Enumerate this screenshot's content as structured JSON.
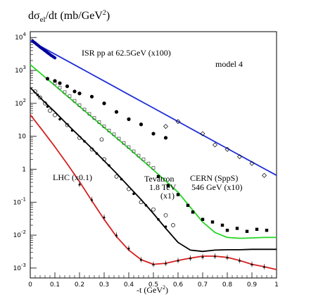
{
  "chart_data": {
    "type": "scatter",
    "title_main": "dσ",
    "title_sub": "el",
    "title_rest": "/dt  (mb/GeV",
    "title_sup": "2",
    "title_end": ")",
    "xlabel_main": "-t  (GeV",
    "xlabel_sup": "2",
    "xlabel_end": ")",
    "xlim": [
      0,
      1
    ],
    "ylim": [
      0.0005,
      15000
    ],
    "y_scale": "log",
    "x_ticks": [
      {
        "v": 0,
        "label": "0"
      },
      {
        "v": 0.1,
        "label": "0.1"
      },
      {
        "v": 0.2,
        "label": "0.2"
      },
      {
        "v": 0.3,
        "label": "0.3"
      },
      {
        "v": 0.4,
        "label": "0.4"
      },
      {
        "v": 0.5,
        "label": "0.5"
      },
      {
        "v": 0.6,
        "label": "0.6"
      },
      {
        "v": 0.7,
        "label": "0.7"
      },
      {
        "v": 0.8,
        "label": "0.8"
      },
      {
        "v": 0.9,
        "label": "0.9"
      },
      {
        "v": 1.0,
        "label": "1"
      }
    ],
    "y_ticks": [
      {
        "v": 0.001,
        "base": "10",
        "exp": "-3"
      },
      {
        "v": 0.01,
        "base": "10",
        "exp": "-2"
      },
      {
        "v": 0.1,
        "base": "10",
        "exp": "-1"
      },
      {
        "v": 1,
        "base": "1",
        "exp": ""
      },
      {
        "v": 10,
        "base": "10",
        "exp": ""
      },
      {
        "v": 100,
        "base": "10",
        "exp": "2"
      },
      {
        "v": 1000,
        "base": "10",
        "exp": "3"
      },
      {
        "v": 10000,
        "base": "10",
        "exp": "4"
      }
    ],
    "annotations": {
      "model": "model 4",
      "isr": "ISR pp at 62.5GeV   (x100)",
      "cern_1": "CERN (SppS)",
      "cern_2": "546 GeV  (x10)",
      "tev_1": "Tevatron",
      "tev_2": "1.8 TeV",
      "tev_3": "(x1)",
      "lhc": "LHC (x0.1)"
    },
    "curves": [
      {
        "key": "isr",
        "color": "#1f2fd6",
        "points": [
          [
            0,
            8000
          ],
          [
            0.1,
            3120
          ],
          [
            0.2,
            1216
          ],
          [
            0.3,
            474
          ],
          [
            0.4,
            185
          ],
          [
            0.5,
            72
          ],
          [
            0.6,
            28
          ],
          [
            0.7,
            10.9
          ],
          [
            0.8,
            4.27
          ],
          [
            0.9,
            1.66
          ],
          [
            1.0,
            0.65
          ]
        ]
      },
      {
        "key": "cern",
        "color": "#22d622",
        "points": [
          [
            0,
            1500
          ],
          [
            0.1,
            347
          ],
          [
            0.2,
            80
          ],
          [
            0.3,
            18.5
          ],
          [
            0.4,
            4.3
          ],
          [
            0.5,
            0.95
          ],
          [
            0.6,
            0.2
          ],
          [
            0.65,
            0.07
          ],
          [
            0.7,
            0.025
          ],
          [
            0.75,
            0.012
          ],
          [
            0.8,
            0.0085
          ],
          [
            0.85,
            0.008
          ],
          [
            0.9,
            0.0082
          ],
          [
            0.95,
            0.0085
          ],
          [
            1.0,
            0.0085
          ]
        ]
      },
      {
        "key": "tevatron",
        "color": "#000000",
        "points": [
          [
            0,
            300
          ],
          [
            0.05,
            125
          ],
          [
            0.1,
            55
          ],
          [
            0.15,
            23
          ],
          [
            0.2,
            10
          ],
          [
            0.25,
            4.3
          ],
          [
            0.3,
            1.8
          ],
          [
            0.35,
            0.75
          ],
          [
            0.4,
            0.3
          ],
          [
            0.45,
            0.12
          ],
          [
            0.5,
            0.045
          ],
          [
            0.55,
            0.016
          ],
          [
            0.6,
            0.006
          ],
          [
            0.65,
            0.0035
          ],
          [
            0.7,
            0.0032
          ],
          [
            0.75,
            0.0035
          ],
          [
            0.8,
            0.0036
          ],
          [
            0.85,
            0.0036
          ],
          [
            0.9,
            0.0037
          ],
          [
            0.95,
            0.0037
          ],
          [
            1.0,
            0.0037
          ]
        ]
      },
      {
        "key": "lhc",
        "color": "#d61f1f",
        "points": [
          [
            0,
            45
          ],
          [
            0.05,
            15
          ],
          [
            0.1,
            4.8
          ],
          [
            0.15,
            1.45
          ],
          [
            0.2,
            0.42
          ],
          [
            0.25,
            0.11
          ],
          [
            0.3,
            0.03
          ],
          [
            0.35,
            0.009
          ],
          [
            0.4,
            0.0035
          ],
          [
            0.45,
            0.0018
          ],
          [
            0.5,
            0.0013
          ],
          [
            0.55,
            0.0014
          ],
          [
            0.6,
            0.0017
          ],
          [
            0.65,
            0.002
          ],
          [
            0.7,
            0.0023
          ],
          [
            0.75,
            0.0023
          ],
          [
            0.8,
            0.0021
          ],
          [
            0.85,
            0.0017
          ],
          [
            0.9,
            0.0013
          ],
          [
            0.95,
            0.0011
          ],
          [
            1.0,
            0.0009
          ]
        ]
      }
    ],
    "series": [
      {
        "key": "isr_data",
        "marker": "filled-small",
        "color": "#000099",
        "points": [
          [
            0.01,
            7800
          ],
          [
            0.015,
            7200
          ],
          [
            0.02,
            6800
          ],
          [
            0.025,
            6300
          ],
          [
            0.03,
            5900
          ],
          [
            0.035,
            5500
          ],
          [
            0.04,
            5100
          ],
          [
            0.045,
            4800
          ],
          [
            0.05,
            4500
          ],
          [
            0.055,
            4200
          ],
          [
            0.06,
            3950
          ],
          [
            0.065,
            3700
          ],
          [
            0.07,
            3450
          ],
          [
            0.075,
            3250
          ],
          [
            0.08,
            3050
          ],
          [
            0.085,
            2850
          ],
          [
            0.09,
            2700
          ],
          [
            0.095,
            2550
          ],
          [
            0.1,
            2400
          ]
        ]
      },
      {
        "key": "cern_open",
        "marker": "open-square",
        "points": [
          [
            0.1,
            400
          ],
          [
            0.12,
            300
          ],
          [
            0.14,
            220
          ],
          [
            0.16,
            165
          ],
          [
            0.18,
            120
          ],
          [
            0.2,
            88
          ],
          [
            0.22,
            65
          ],
          [
            0.24,
            48
          ],
          [
            0.26,
            36
          ],
          [
            0.28,
            27
          ],
          [
            0.3,
            20
          ],
          [
            0.32,
            15
          ],
          [
            0.34,
            11.5
          ],
          [
            0.36,
            8.5
          ],
          [
            0.38,
            6.3
          ],
          [
            0.4,
            4.7
          ],
          [
            0.42,
            3.5
          ],
          [
            0.44,
            2.6
          ],
          [
            0.46,
            2.0
          ],
          [
            0.48,
            1.5
          ],
          [
            0.5,
            1.1
          ]
        ]
      },
      {
        "key": "cern_filled",
        "marker": "filled-square",
        "points": [
          [
            0.52,
            0.6
          ],
          [
            0.56,
            0.32
          ],
          [
            0.6,
            0.17
          ],
          [
            0.64,
            0.08
          ],
          [
            0.66,
            0.05
          ],
          [
            0.7,
            0.03
          ],
          [
            0.74,
            0.025
          ],
          [
            0.78,
            0.02
          ],
          [
            0.8,
            0.014
          ],
          [
            0.84,
            0.016
          ],
          [
            0.88,
            0.013
          ],
          [
            0.92,
            0.015
          ],
          [
            0.96,
            0.014
          ]
        ]
      },
      {
        "key": "isr_big",
        "marker": "filled-circle",
        "points": [
          [
            0.07,
            560
          ],
          [
            0.1,
            480
          ],
          [
            0.12,
            410
          ],
          [
            0.15,
            330
          ],
          [
            0.18,
            230
          ],
          [
            0.2,
            200
          ],
          [
            0.25,
            160
          ],
          [
            0.3,
            100
          ],
          [
            0.35,
            55
          ],
          [
            0.4,
            33
          ],
          [
            0.45,
            23
          ],
          [
            0.5,
            12
          ],
          [
            0.55,
            9
          ]
        ]
      },
      {
        "key": "isr_open",
        "marker": "open-diamond",
        "points": [
          [
            0.55,
            20
          ],
          [
            0.6,
            28
          ],
          [
            0.7,
            12
          ],
          [
            0.75,
            5.5
          ],
          [
            0.8,
            4
          ],
          [
            0.85,
            2.4
          ],
          [
            0.9,
            1.5
          ],
          [
            0.95,
            0.65
          ]
        ]
      },
      {
        "key": "tev_open",
        "marker": "open-circle",
        "points": [
          [
            0.02,
            230
          ],
          [
            0.04,
            150
          ],
          [
            0.06,
            100
          ],
          [
            0.08,
            60
          ],
          [
            0.1,
            44
          ],
          [
            0.15,
            22
          ],
          [
            0.2,
            9
          ],
          [
            0.25,
            4
          ],
          [
            0.29,
            8
          ],
          [
            0.3,
            2
          ],
          [
            0.35,
            0.6
          ],
          [
            0.4,
            0.25
          ],
          [
            0.45,
            0.1
          ],
          [
            0.5,
            0.06
          ],
          [
            0.55,
            0.04
          ],
          [
            0.58,
            0.02
          ]
        ]
      },
      {
        "key": "tev_filled",
        "marker": "filled-circle-small",
        "points": [
          [
            0.03,
            180
          ],
          [
            0.07,
            80
          ],
          [
            0.12,
            33
          ],
          [
            0.17,
            15
          ],
          [
            0.22,
            7
          ],
          [
            0.27,
            3
          ],
          [
            0.32,
            1.3
          ],
          [
            0.37,
            0.5
          ],
          [
            0.42,
            0.18
          ],
          [
            0.47,
            0.08
          ],
          [
            0.52,
            0.03
          ],
          [
            0.55,
            0.018
          ]
        ]
      },
      {
        "key": "lhc_data",
        "marker": "triangle-small",
        "points": [
          [
            0.2,
            0.35
          ],
          [
            0.25,
            0.12
          ],
          [
            0.3,
            0.035
          ],
          [
            0.35,
            0.01
          ],
          [
            0.4,
            0.004
          ],
          [
            0.45,
            0.0018
          ],
          [
            0.5,
            0.0013
          ],
          [
            0.55,
            0.0014
          ],
          [
            0.6,
            0.0017
          ],
          [
            0.65,
            0.002
          ],
          [
            0.7,
            0.0022
          ],
          [
            0.75,
            0.0023
          ],
          [
            0.8,
            0.0021
          ],
          [
            0.85,
            0.0017
          ],
          [
            0.9,
            0.0013
          ],
          [
            0.95,
            0.0011
          ]
        ]
      }
    ]
  }
}
